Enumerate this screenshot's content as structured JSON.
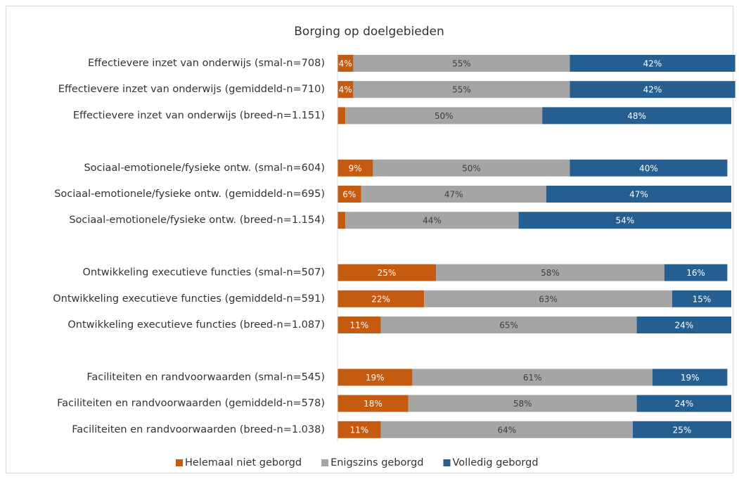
{
  "chart_data": {
    "type": "stacked-bar-horizontal",
    "title": "Borging op doelgebieden",
    "categories": [
      "Effectievere inzet van onderwijs (smal-n=708)",
      "Effectievere inzet van onderwijs (gemiddeld-n=710)",
      "Effectievere inzet van onderwijs (breed-n=1.151)",
      null,
      "Sociaal-emotionele/fysieke ontw. (smal-n=604)",
      "Sociaal-emotionele/fysieke ontw. (gemiddeld-n=695)",
      "Sociaal-emotionele/fysieke ontw. (breed-n=1.154)",
      null,
      "Ontwikkeling executieve functies (smal-n=507)",
      "Ontwikkeling executieve functies (gemiddeld-n=591)",
      "Ontwikkeling executieve functies (breed-n=1.087)",
      null,
      "Faciliteiten en randvoorwaarden (smal-n=545)",
      "Faciliteiten en randvoorwaarden (gemiddeld-n=578)",
      "Faciliteiten en randvoorwaarden (breed-n=1.038)"
    ],
    "series": [
      {
        "name": "Helemaal niet geborgd",
        "color": "#c55a11",
        "values": [
          4,
          4,
          2,
          null,
          9,
          6,
          2,
          null,
          25,
          22,
          11,
          null,
          19,
          18,
          11
        ],
        "value_labels": [
          "4%",
          "4%",
          null,
          null,
          "9%",
          "6%",
          null,
          null,
          "25%",
          "22%",
          "11%",
          null,
          "19%",
          "18%",
          "11%"
        ]
      },
      {
        "name": "Enigszins geborgd",
        "color": "#a5a5a5",
        "values": [
          55,
          55,
          50,
          null,
          50,
          47,
          44,
          null,
          58,
          63,
          65,
          null,
          61,
          58,
          64
        ],
        "value_labels": [
          "55%",
          "55%",
          "50%",
          null,
          "50%",
          "47%",
          "44%",
          null,
          "58%",
          "63%",
          "65%",
          null,
          "61%",
          "58%",
          "64%"
        ]
      },
      {
        "name": "Volledig geborgd",
        "color": "#255e91",
        "values": [
          42,
          42,
          48,
          null,
          40,
          47,
          54,
          null,
          16,
          15,
          24,
          null,
          19,
          24,
          25
        ],
        "value_labels": [
          "42%",
          "42%",
          "48%",
          null,
          "40%",
          "47%",
          "54%",
          null,
          "16%",
          "15%",
          "24%",
          null,
          "19%",
          "24%",
          "25%"
        ]
      }
    ],
    "xlim": [
      0,
      100
    ],
    "legend": "bottom"
  }
}
